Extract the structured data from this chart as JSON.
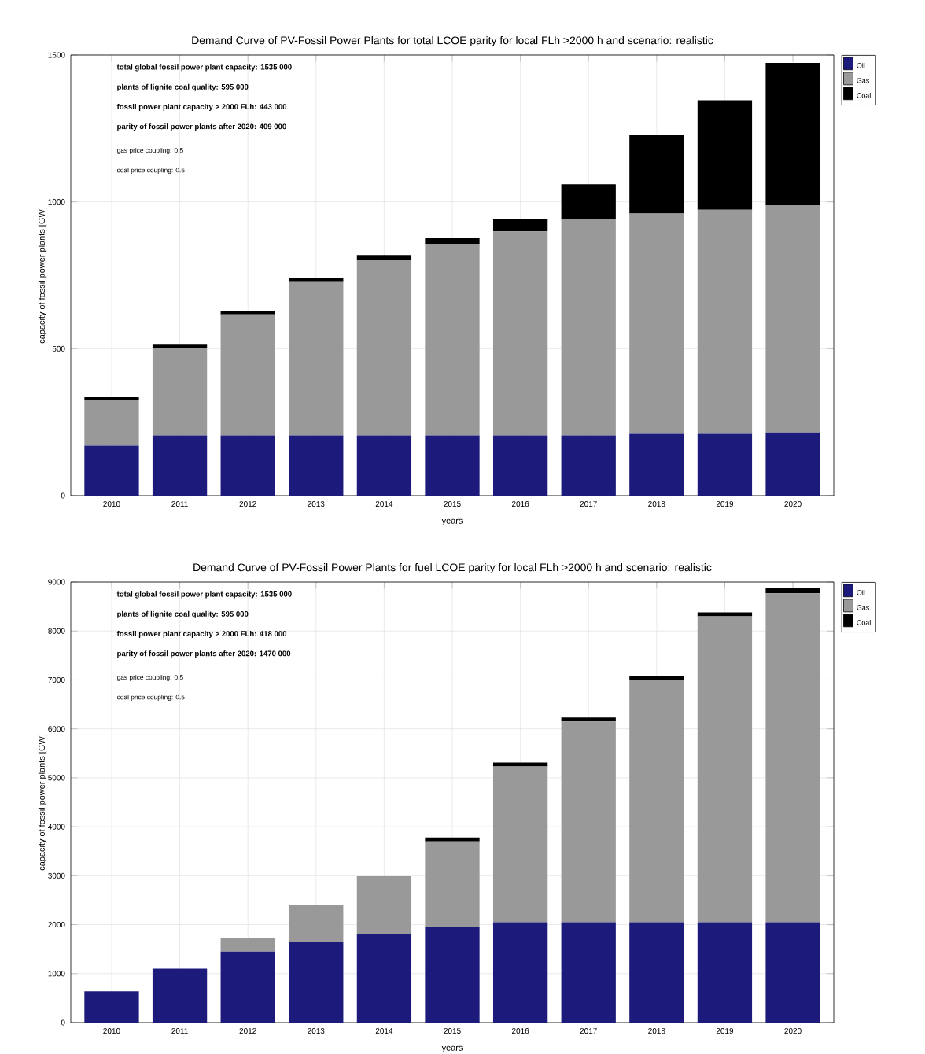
{
  "chart_data": [
    {
      "type": "bar",
      "stacked": true,
      "title": "Demand Curve of PV-Fossil Power Plants for total LCOE parity for local FLh >2000 h and scenario: realistic",
      "xlabel": "years",
      "ylabel": "capacity of fossil power plants [GW]",
      "categories": [
        "2010",
        "2011",
        "2012",
        "2013",
        "2014",
        "2015",
        "2016",
        "2017",
        "2018",
        "2019",
        "2020"
      ],
      "series": [
        {
          "name": "Oil",
          "color": "#1c1a7a",
          "values": [
            170,
            205,
            205,
            205,
            205,
            205,
            205,
            205,
            210,
            210,
            215
          ]
        },
        {
          "name": "Gas",
          "color": "#999999",
          "values": [
            154,
            298,
            412,
            524,
            598,
            652,
            694,
            737,
            750,
            763,
            776
          ]
        },
        {
          "name": "Coal",
          "color": "#000000",
          "values": [
            11,
            13,
            11,
            10,
            16,
            21,
            43,
            118,
            269,
            373,
            482
          ]
        }
      ],
      "ylim": [
        0,
        1500
      ],
      "yticks": [
        0,
        500,
        1000,
        1500
      ],
      "grid": true,
      "legend": "top right",
      "annotations": [
        "total global fossil power plant capacity: 1535 000",
        "plants of lignite coal quality: 595 000",
        "fossil power plant capacity > 2000 FLh: 443 000",
        "parity of fossil power plants after 2020: 409 000",
        "gas price coupling: 0.5",
        "coal price coupling: 0.5"
      ]
    },
    {
      "type": "bar",
      "stacked": true,
      "title": "Demand Curve of PV-Fossil Power Plants for fuel LCOE parity for local FLh >2000 h and scenario: realistic",
      "xlabel": "years",
      "ylabel": "capacity of fossil power plants [GW]",
      "categories": [
        "2010",
        "2011",
        "2012",
        "2013",
        "2014",
        "2015",
        "2016",
        "2017",
        "2018",
        "2019",
        "2020"
      ],
      "series": [
        {
          "name": "Oil",
          "color": "#1c1a7a",
          "values": [
            640,
            1100,
            1450,
            1640,
            1810,
            1960,
            2050,
            2050,
            2050,
            2050,
            2050
          ]
        },
        {
          "name": "Gas",
          "color": "#999999",
          "values": [
            0,
            0,
            270,
            770,
            1180,
            1740,
            3180,
            4100,
            4950,
            6250,
            6720
          ]
        },
        {
          "name": "Coal",
          "color": "#000000",
          "values": [
            0,
            0,
            0,
            0,
            0,
            80,
            80,
            80,
            80,
            80,
            110
          ]
        }
      ],
      "ylim": [
        0,
        9000
      ],
      "yticks": [
        0,
        1000,
        2000,
        3000,
        4000,
        5000,
        6000,
        7000,
        8000,
        9000
      ],
      "grid": true,
      "legend": "top right",
      "annotations": [
        "total global fossil power plant capacity: 1535 000",
        "plants of lignite coal quality: 595 000",
        "fossil power plant capacity > 2000 FLh: 418 000",
        "parity of fossil power plants after 2020: 1470 000",
        "gas price coupling: 0.5",
        "coal price coupling: 0.5"
      ]
    }
  ]
}
